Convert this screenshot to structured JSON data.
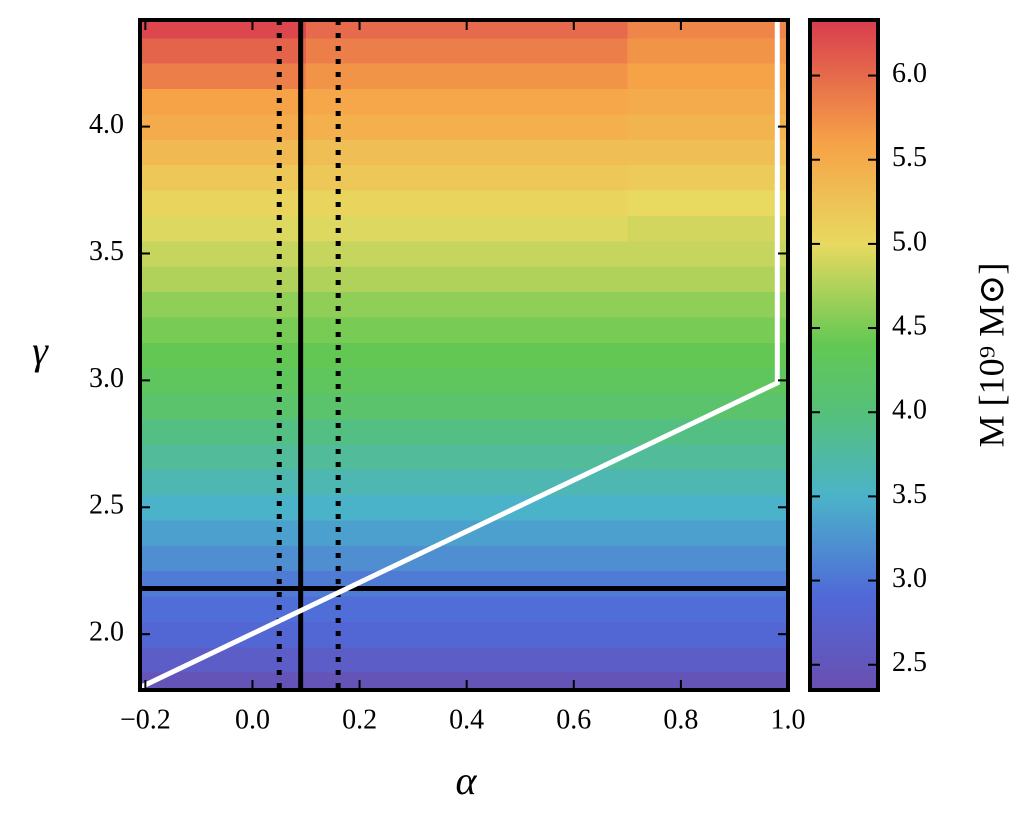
{
  "chart_data": {
    "type": "heatmap",
    "x_label": "α",
    "y_label": "γ",
    "colorbar_label": "M [10⁹ M⊙]",
    "xlim": [
      -0.21,
      1.0
    ],
    "xticks": [
      {
        "value": -0.2,
        "label": "−0.2"
      },
      {
        "value": 0,
        "label": "0.0"
      },
      0.2,
      0.4,
      0.6,
      0.8,
      {
        "value": 1,
        "label": "1.0"
      }
    ],
    "ylim": [
      1.78,
      4.42
    ],
    "yticks": [
      {
        "value": 2,
        "label": "2.0"
      },
      2.5,
      {
        "value": 3,
        "label": "3.0"
      },
      3.5,
      {
        "value": 4,
        "label": "4.0"
      }
    ],
    "clim": [
      2.35,
      6.33
    ],
    "cticks": [
      2.5,
      {
        "value": 3,
        "label": "3.0"
      },
      3.5,
      {
        "value": 4,
        "label": "4.0"
      },
      4.5,
      {
        "value": 5,
        "label": "5.0"
      },
      5.5,
      {
        "value": 6,
        "label": "6.0"
      }
    ],
    "colormap": [
      {
        "value": 2.35,
        "color": "#6a4fb0"
      },
      {
        "value": 2.9,
        "color": "#5068d8"
      },
      {
        "value": 3.5,
        "color": "#4bb3c9"
      },
      {
        "value": 4.0,
        "color": "#55c07a"
      },
      {
        "value": 4.4,
        "color": "#62c853"
      },
      {
        "value": 5.0,
        "color": "#e8d960"
      },
      {
        "value": 5.6,
        "color": "#f6a247"
      },
      {
        "value": 6.33,
        "color": "#d83c4e"
      }
    ],
    "x": [
      -0.2,
      0.4,
      1.0
    ],
    "y": [
      1.8,
      1.9,
      2.0,
      2.1,
      2.2,
      2.3,
      2.4,
      2.5,
      2.6,
      2.7,
      2.8,
      2.9,
      3.0,
      3.1,
      3.2,
      3.3,
      3.4,
      3.5,
      3.6,
      3.7,
      3.8,
      3.9,
      4.0,
      4.1,
      4.2,
      4.3,
      4.4
    ],
    "z": [
      [
        2.45,
        2.45,
        2.45
      ],
      [
        2.65,
        2.65,
        2.65
      ],
      [
        2.85,
        2.85,
        2.85
      ],
      [
        2.95,
        2.95,
        2.95
      ],
      [
        3.05,
        3.05,
        3.05
      ],
      [
        3.2,
        3.2,
        3.2
      ],
      [
        3.35,
        3.35,
        3.35
      ],
      [
        3.5,
        3.5,
        3.5
      ],
      [
        3.65,
        3.65,
        3.65
      ],
      [
        3.8,
        3.8,
        3.8
      ],
      [
        3.95,
        3.95,
        3.95
      ],
      [
        4.15,
        4.15,
        4.15
      ],
      [
        4.3,
        4.3,
        4.3
      ],
      [
        4.4,
        4.4,
        4.4
      ],
      [
        4.5,
        4.5,
        4.5
      ],
      [
        4.6,
        4.6,
        4.6
      ],
      [
        4.75,
        4.75,
        4.75
      ],
      [
        4.85,
        4.85,
        4.85
      ],
      [
        4.95,
        4.95,
        4.9
      ],
      [
        5.05,
        5.05,
        5.0
      ],
      [
        5.2,
        5.2,
        5.15
      ],
      [
        5.35,
        5.3,
        5.3
      ],
      [
        5.5,
        5.45,
        5.4
      ],
      [
        5.6,
        5.55,
        5.5
      ],
      [
        5.85,
        5.7,
        5.6
      ],
      [
        6.05,
        5.85,
        5.7
      ],
      [
        6.25,
        6.0,
        5.8
      ]
    ],
    "reference_lines": [
      {
        "axis": "x",
        "value": 0.09,
        "style": "solid"
      },
      {
        "axis": "x",
        "value": 0.05,
        "style": "dotted"
      },
      {
        "axis": "x",
        "value": 0.16,
        "style": "dotted"
      },
      {
        "axis": "y",
        "value": 2.18,
        "style": "solid"
      }
    ],
    "curve": {
      "color": "#ffffff",
      "x": [
        -0.21,
        0.95,
        0.98,
        0.98
      ],
      "y": [
        1.79,
        2.96,
        2.99,
        4.42
      ]
    }
  }
}
